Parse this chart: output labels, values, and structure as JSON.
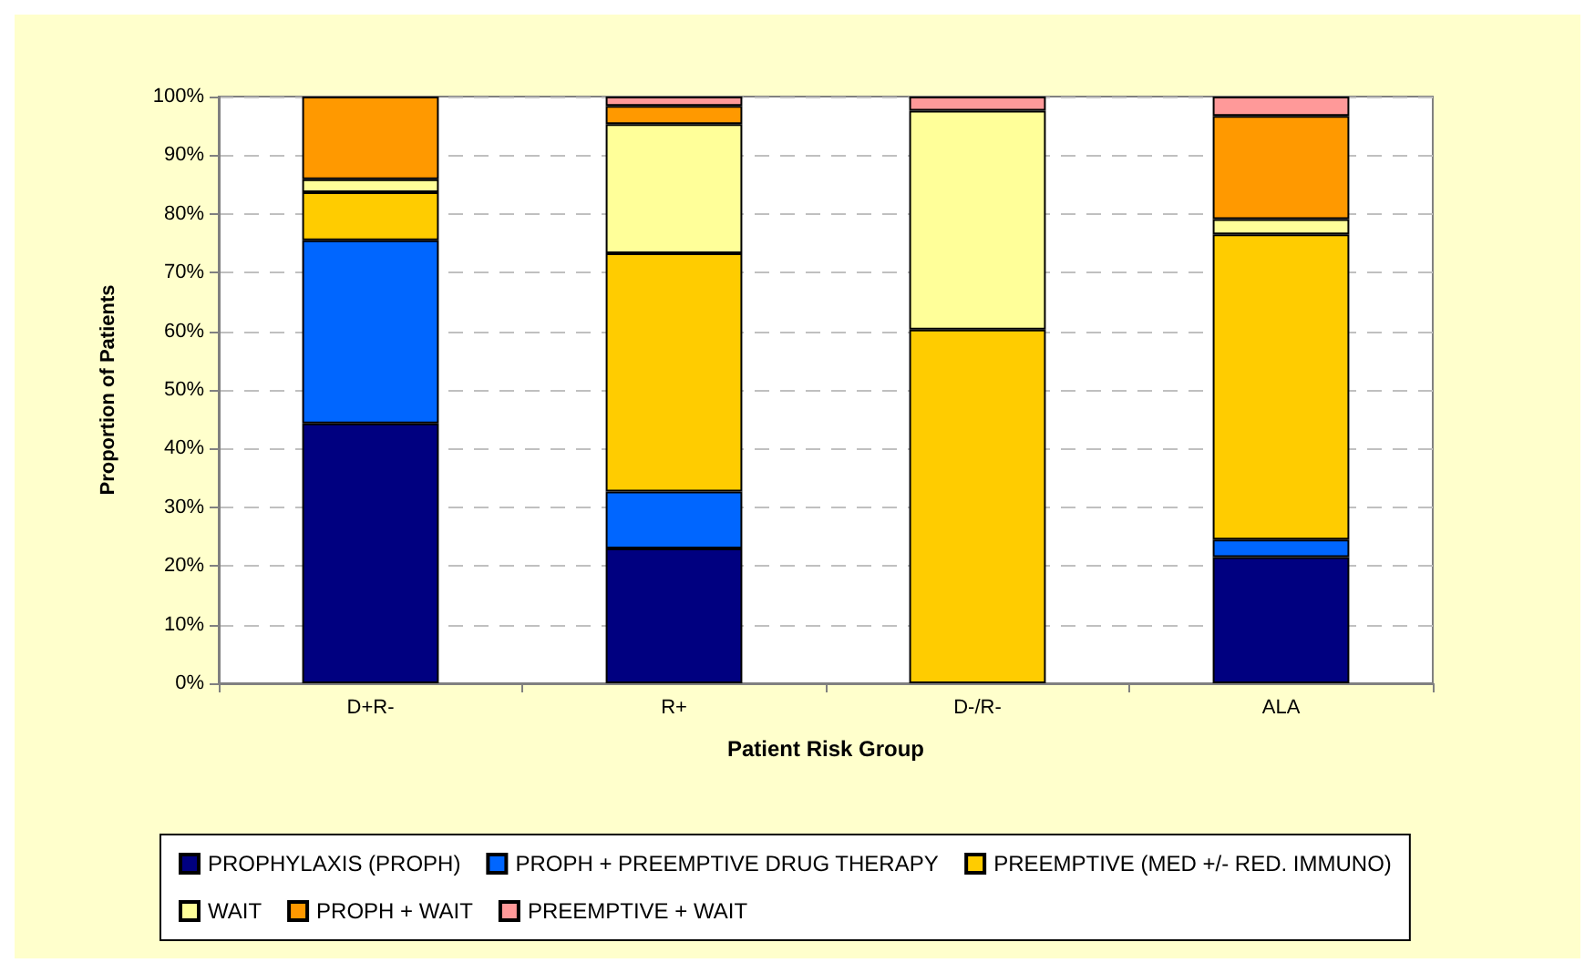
{
  "chart_data": {
    "type": "bar",
    "stacked": true,
    "xlabel": "Patient Risk Group",
    "ylabel": "Proportion of Patients",
    "categories": [
      "D+R-",
      "R+",
      "D-/R-",
      "ALA"
    ],
    "series": [
      {
        "name": "PROPHYLAXIS (PROPH)",
        "color": "#000080",
        "values": [
          44.3,
          23.0,
          0,
          21.5
        ]
      },
      {
        "name": "PROPH + PREEMPTIVE DRUG THERAPY",
        "color": "#0066ff",
        "values": [
          31.2,
          9.7,
          0,
          3.0
        ]
      },
      {
        "name": "PREEMPTIVE (MED +/- RED. IMMUNO)",
        "color": "#ffcc00",
        "values": [
          8.2,
          40.6,
          60.3,
          52.0
        ]
      },
      {
        "name": "WAIT",
        "color": "#ffff99",
        "values": [
          2.2,
          22.0,
          37.3,
          2.6
        ]
      },
      {
        "name": "PROPH + WAIT",
        "color": "#ff9900",
        "values": [
          14.1,
          3.1,
          0,
          17.6
        ]
      },
      {
        "name": "PREEMPTIVE + WAIT",
        "color": "#ff9999",
        "values": [
          0,
          1.6,
          2.4,
          3.3
        ]
      }
    ],
    "ylim": [
      0,
      100
    ],
    "yticks": [
      {
        "value": 0,
        "label": "0%"
      },
      {
        "value": 10,
        "label": "10%"
      },
      {
        "value": 20,
        "label": "20%"
      },
      {
        "value": 30,
        "label": "30%"
      },
      {
        "value": 40,
        "label": "40%"
      },
      {
        "value": 50,
        "label": "50%"
      },
      {
        "value": 60,
        "label": "60%"
      },
      {
        "value": 70,
        "label": "70%"
      },
      {
        "value": 80,
        "label": "80%"
      },
      {
        "value": 90,
        "label": "90%"
      },
      {
        "value": 100,
        "label": "100%"
      }
    ],
    "grid": "y",
    "legend": "bottom"
  }
}
